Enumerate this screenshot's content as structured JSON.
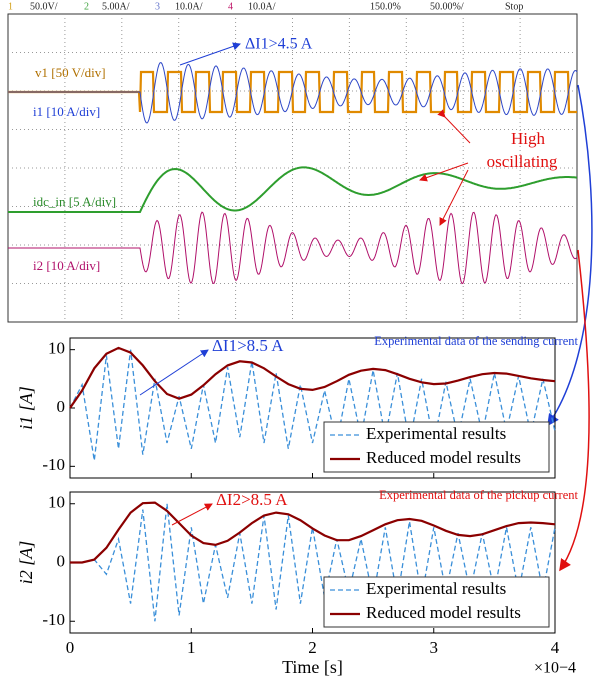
{
  "chart_data": [
    {
      "type": "oscilloscope",
      "header": [
        "1",
        "50.0V/",
        "2",
        "5.00A/",
        "3",
        "10.0A/",
        "4",
        "10.0A/",
        "150.0%",
        "50.00%/",
        "Stop"
      ],
      "labels": [
        "v1 [50 V/div]",
        "i1 [10 A/div]",
        "idc_in [5 A/div]",
        "i2 [10 A/div]"
      ],
      "annotations": [
        "ΔI1>4.5 A",
        "High",
        "oscillating"
      ]
    },
    {
      "type": "line",
      "ylabel": "i1 [A]",
      "annotation": "ΔI1>8.5 A",
      "note": "Experimental data of the sending current",
      "ylim": [
        -12,
        12
      ],
      "yticks": [
        -10,
        0,
        10
      ],
      "xlim": [
        0,
        4
      ],
      "xticks": [
        0,
        1,
        2,
        3,
        4
      ],
      "legend": "lower right",
      "x": [
        0,
        0.1,
        0.2,
        0.3,
        0.4,
        0.5,
        0.6,
        0.7,
        0.8,
        0.9,
        1,
        1.1,
        1.2,
        1.3,
        1.4,
        1.5,
        1.6,
        1.7,
        1.8,
        1.9,
        2,
        2.1,
        2.2,
        2.3,
        2.4,
        2.5,
        2.6,
        2.7,
        2.8,
        2.9,
        3,
        3.1,
        3.2,
        3.3,
        3.4,
        3.5,
        3.6,
        3.7,
        3.8,
        3.9,
        4
      ],
      "series": [
        {
          "name": "Experimental results",
          "color": "#3a8fd9",
          "dashed": true,
          "values": [
            0,
            4,
            -9,
            9,
            -7,
            10,
            -8,
            5,
            -6,
            2,
            -7,
            4,
            -6,
            7,
            -5,
            8,
            -6,
            6,
            -7,
            4,
            -6,
            3,
            -6,
            5,
            -5,
            6.5,
            -5,
            6,
            -6,
            5,
            -6,
            4.5,
            -5,
            5,
            -4.5,
            6,
            -4,
            5.5,
            -4.5,
            5,
            -4
          ]
        },
        {
          "name": "Reduced model results",
          "color": "#8b0000",
          "dashed": false,
          "values": [
            0,
            3,
            6.8,
            9.3,
            10.3,
            9.5,
            7.3,
            4.6,
            2.4,
            1.6,
            2.3,
            3.9,
            5.8,
            7.3,
            8,
            7.8,
            6.8,
            5.4,
            4.1,
            3.3,
            3.1,
            3.6,
            4.6,
            5.7,
            6.4,
            6.7,
            6.5,
            5.8,
            5,
            4.4,
            4.1,
            4.2,
            4.7,
            5.3,
            5.8,
            6,
            5.9,
            5.5,
            5.1,
            4.8,
            4.6
          ]
        }
      ]
    },
    {
      "type": "line",
      "ylabel": "i2 [A]",
      "annotation": "ΔI2>8.5 A",
      "note": "Experimental data of the pickup current",
      "ylim": [
        -12,
        12
      ],
      "yticks": [
        -10,
        0,
        10
      ],
      "xlim": [
        0,
        4
      ],
      "xticks": [
        0,
        1,
        2,
        3,
        4
      ],
      "legend": "lower right",
      "xlabel": "Time [s]",
      "xscale_label": "×10−4",
      "x": [
        0,
        0.1,
        0.2,
        0.3,
        0.4,
        0.5,
        0.6,
        0.7,
        0.8,
        0.9,
        1,
        1.1,
        1.2,
        1.3,
        1.4,
        1.5,
        1.6,
        1.7,
        1.8,
        1.9,
        2,
        2.1,
        2.2,
        2.3,
        2.4,
        2.5,
        2.6,
        2.7,
        2.8,
        2.9,
        3,
        3.1,
        3.2,
        3.3,
        3.4,
        3.5,
        3.6,
        3.7,
        3.8,
        3.9,
        4
      ],
      "series": [
        {
          "name": "Experimental results",
          "color": "#3a8fd9",
          "dashed": true,
          "values": [
            0,
            0,
            0.5,
            -2,
            4,
            -7,
            9,
            -10,
            10,
            -9,
            6,
            -7,
            3,
            -6,
            5,
            -7,
            8,
            -8,
            8,
            -7,
            6,
            -6,
            4,
            -5,
            4,
            -6,
            6,
            -6,
            7,
            -6,
            6,
            -5,
            5,
            -5,
            5,
            -5,
            6,
            -5,
            6,
            -5,
            6
          ]
        },
        {
          "name": "Reduced model results",
          "color": "#8b0000",
          "dashed": false,
          "values": [
            0,
            0,
            0.5,
            2.5,
            5.6,
            8.5,
            10.1,
            10.2,
            8.8,
            6.7,
            4.6,
            3.3,
            3,
            3.7,
            5.1,
            6.7,
            8,
            8.5,
            8.2,
            7.2,
            5.8,
            4.6,
            3.8,
            3.8,
            4.5,
            5.5,
            6.5,
            7.2,
            7.4,
            7.1,
            6.3,
            5.4,
            4.7,
            4.5,
            4.8,
            5.5,
            6.2,
            6.7,
            6.8,
            6.7,
            6.5
          ]
        }
      ]
    }
  ]
}
